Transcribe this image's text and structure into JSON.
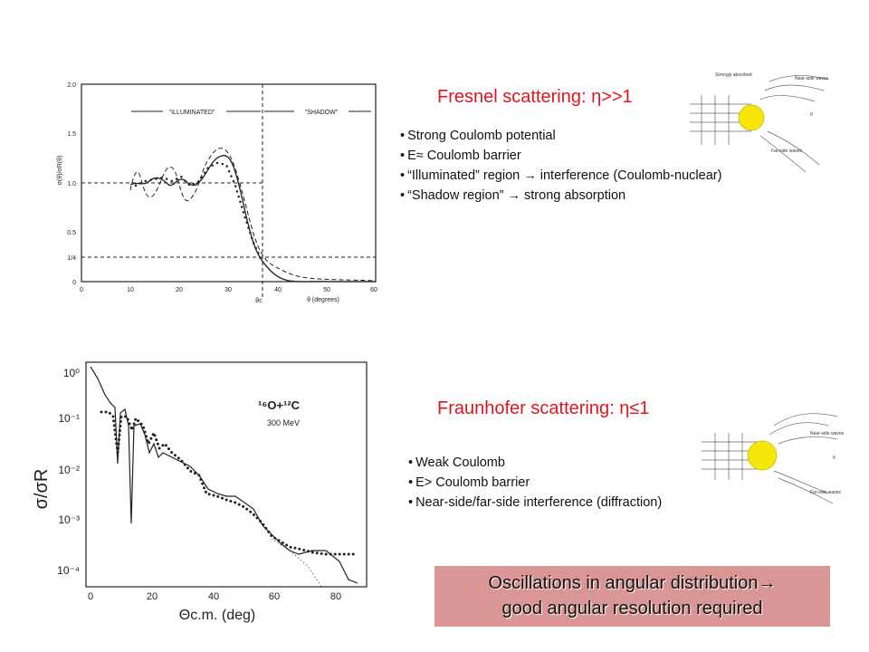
{
  "fresnel": {
    "title": "Fresnel scattering: η>>1",
    "bullets": [
      "Strong Coulomb potential",
      "E≈ Coulomb barrier",
      "“Illuminated” region → interference (Coulomb-nuclear)",
      "“Shadow region” → strong absorption"
    ]
  },
  "fraunhofer": {
    "title": "Fraunhofer scattering: η≤1",
    "bullets": [
      "Weak Coulomb",
      "E> Coulomb barrier",
      "Near-side/far-side interference (diffraction)"
    ]
  },
  "note": {
    "lines": [
      "Oscillations in angular distribution→",
      "good angular resolution required"
    ]
  },
  "plot1": {
    "regions": [
      "\"ILLUMINATED\"",
      "\"SHADOW\""
    ],
    "y_label": "σ(θ)/σR(θ)",
    "yticks": [
      "2.0",
      "1.5",
      "1.0",
      "0.5",
      "1/4",
      "0"
    ],
    "xticks": [
      "0",
      "10",
      "20",
      "30",
      "40",
      "50",
      "60"
    ],
    "theta_c": "θc",
    "x_label": "θ (degrees)"
  },
  "plot2": {
    "annotation": "¹⁶O+¹²C",
    "energy": "300 MeV",
    "y_label": "σ/σR",
    "yticks": [
      "10⁰",
      "10⁻¹",
      "10⁻²",
      "10⁻³",
      "10⁻⁴"
    ],
    "xticks": [
      "0",
      "20",
      "40",
      "60",
      "80"
    ],
    "x_label": "Θc.m. (deg)"
  },
  "diagram1": {
    "labels": [
      "Strongly absorbed",
      "Near-side waves",
      "Far-side waves",
      "θ"
    ]
  },
  "diagram2": {
    "labels": [
      "Near-side waves",
      "Far-side waves",
      "θ"
    ]
  }
}
